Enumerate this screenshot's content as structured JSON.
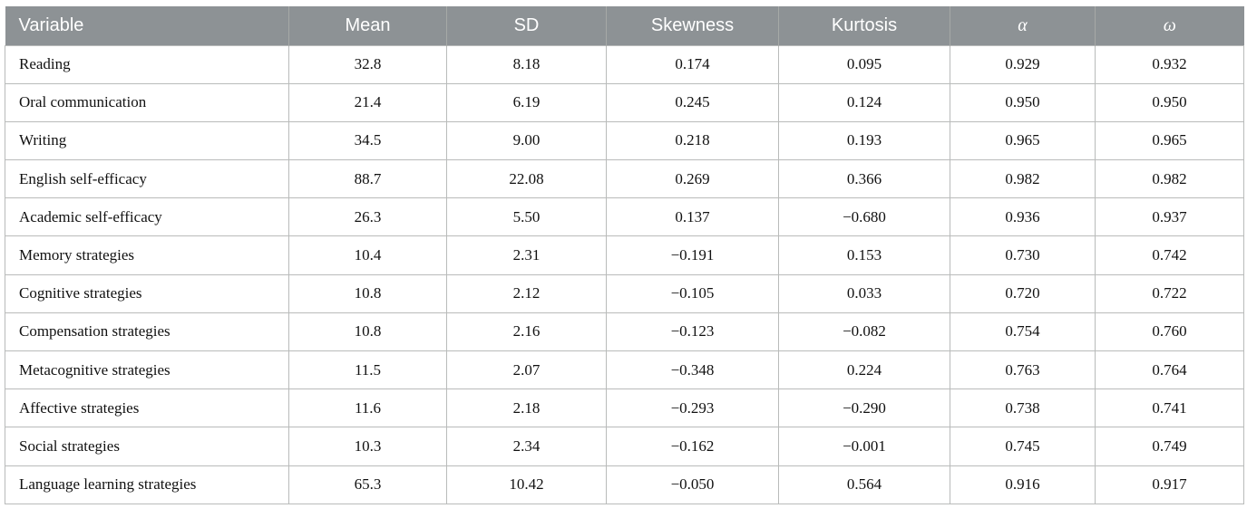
{
  "colors": {
    "header_bg": "#8d9295",
    "header_text": "#ffffff",
    "border": "#b9bbba"
  },
  "table": {
    "columns": [
      {
        "key": "variable",
        "label": "Variable"
      },
      {
        "key": "mean",
        "label": "Mean"
      },
      {
        "key": "sd",
        "label": "SD"
      },
      {
        "key": "skewness",
        "label": "Skewness"
      },
      {
        "key": "kurtosis",
        "label": "Kurtosis"
      },
      {
        "key": "alpha",
        "label": "α"
      },
      {
        "key": "omega",
        "label": "ω"
      }
    ],
    "rows": [
      {
        "variable": "Reading",
        "mean": "32.8",
        "sd": "8.18",
        "skewness": "0.174",
        "kurtosis": "0.095",
        "alpha": "0.929",
        "omega": "0.932"
      },
      {
        "variable": "Oral communication",
        "mean": "21.4",
        "sd": "6.19",
        "skewness": "0.245",
        "kurtosis": "0.124",
        "alpha": "0.950",
        "omega": "0.950"
      },
      {
        "variable": "Writing",
        "mean": "34.5",
        "sd": "9.00",
        "skewness": "0.218",
        "kurtosis": "0.193",
        "alpha": "0.965",
        "omega": "0.965"
      },
      {
        "variable": "English self-efficacy",
        "mean": "88.7",
        "sd": "22.08",
        "skewness": "0.269",
        "kurtosis": "0.366",
        "alpha": "0.982",
        "omega": "0.982"
      },
      {
        "variable": "Academic self-efficacy",
        "mean": "26.3",
        "sd": "5.50",
        "skewness": "0.137",
        "kurtosis": "−0.680",
        "alpha": "0.936",
        "omega": "0.937"
      },
      {
        "variable": "Memory strategies",
        "mean": "10.4",
        "sd": "2.31",
        "skewness": "−0.191",
        "kurtosis": "0.153",
        "alpha": "0.730",
        "omega": "0.742"
      },
      {
        "variable": "Cognitive strategies",
        "mean": "10.8",
        "sd": "2.12",
        "skewness": "−0.105",
        "kurtosis": "0.033",
        "alpha": "0.720",
        "omega": "0.722"
      },
      {
        "variable": "Compensation strategies",
        "mean": "10.8",
        "sd": "2.16",
        "skewness": "−0.123",
        "kurtosis": "−0.082",
        "alpha": "0.754",
        "omega": "0.760"
      },
      {
        "variable": "Metacognitive strategies",
        "mean": "11.5",
        "sd": "2.07",
        "skewness": "−0.348",
        "kurtosis": "0.224",
        "alpha": "0.763",
        "omega": "0.764"
      },
      {
        "variable": "Affective strategies",
        "mean": "11.6",
        "sd": "2.18",
        "skewness": "−0.293",
        "kurtosis": "−0.290",
        "alpha": "0.738",
        "omega": "0.741"
      },
      {
        "variable": "Social strategies",
        "mean": "10.3",
        "sd": "2.34",
        "skewness": "−0.162",
        "kurtosis": "−0.001",
        "alpha": "0.745",
        "omega": "0.749"
      },
      {
        "variable": "Language learning strategies",
        "mean": "65.3",
        "sd": "10.42",
        "skewness": "−0.050",
        "kurtosis": "0.564",
        "alpha": "0.916",
        "omega": "0.917"
      }
    ]
  }
}
